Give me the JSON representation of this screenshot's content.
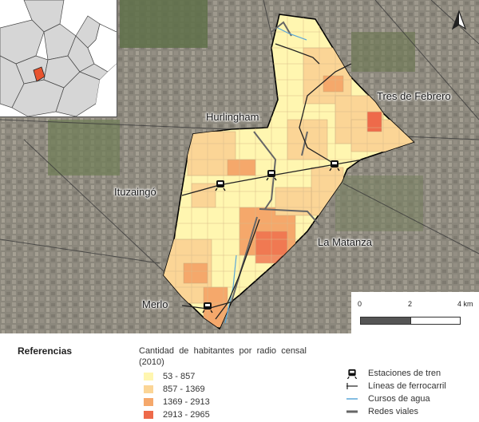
{
  "places": {
    "hurlingham": "Hurlingham",
    "tres_de_febrero": "Tres de Febrero",
    "ituzaingo": "Ituzaingó",
    "la_matanza": "La Matanza",
    "merlo": "Merlo"
  },
  "north_arrow": {
    "icon": "north-arrow-icon"
  },
  "scale_bar": {
    "ticks": [
      "0",
      "2",
      "4 km"
    ]
  },
  "legend": {
    "title": "Referencias",
    "choropleth_title": "Cantidad de habitantes por radio censal (2010)",
    "classes": [
      {
        "label": "53 - 857",
        "color": "#fff6b0"
      },
      {
        "label": "857 - 1369",
        "color": "#fbd596"
      },
      {
        "label": "1369 - 2913",
        "color": "#f5a86b"
      },
      {
        "label": "2913 - 2965",
        "color": "#ee6a4a"
      }
    ],
    "symbols": [
      {
        "label": "Estaciones de tren",
        "icon": "train-station-icon"
      },
      {
        "label": "Líneas de ferrocarril",
        "icon": "railway-line-icon"
      },
      {
        "label": "Cursos de agua",
        "icon": "watercourse-icon",
        "color": "#5aa7d8"
      },
      {
        "label": "Redes viales",
        "icon": "road-network-icon",
        "color": "#666666"
      }
    ]
  }
}
